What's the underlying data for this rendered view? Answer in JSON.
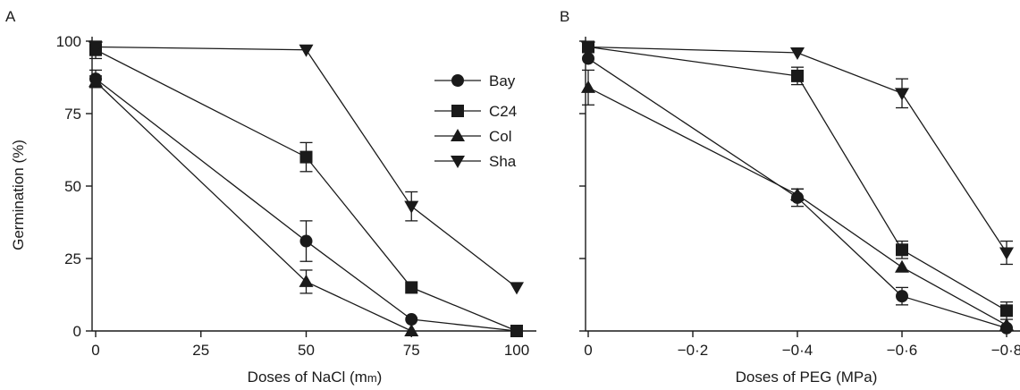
{
  "chart_data": [
    {
      "panel": "A",
      "type": "line",
      "xlabel": "Doses of NaCl (mm)",
      "xlabel_main": "Doses of NaCl (m",
      "xlabel_unit_sc": "m",
      "xlabel_close": ")",
      "ylabel": "Germination (%)",
      "x": [
        0,
        25,
        50,
        75,
        100
      ],
      "x_tick_labels": [
        "0",
        "25",
        "50",
        "75",
        "100"
      ],
      "y_tick_labels": [
        "0",
        "25",
        "50",
        "75",
        "100"
      ],
      "y_ticks": [
        0,
        25,
        50,
        75,
        100
      ],
      "xlim": [
        0,
        100
      ],
      "ylim": [
        0,
        100
      ],
      "legend": {
        "placement": "top-right",
        "entries": [
          "Bay",
          "C24",
          "Col",
          "Sha"
        ]
      },
      "series": [
        {
          "name": "Bay",
          "marker": "circle",
          "x": [
            0,
            50,
            75,
            100
          ],
          "values": [
            87,
            31,
            4,
            0
          ],
          "err": [
            3,
            7,
            0,
            0
          ]
        },
        {
          "name": "C24",
          "marker": "square",
          "x": [
            0,
            50,
            75,
            100
          ],
          "values": [
            97,
            60,
            15,
            0
          ],
          "err": [
            3,
            5,
            0,
            0
          ]
        },
        {
          "name": "Col",
          "marker": "triangle-up",
          "x": [
            0,
            50,
            75
          ],
          "values": [
            86,
            17,
            0
          ],
          "err": [
            2,
            4,
            0
          ]
        },
        {
          "name": "Sha",
          "marker": "triangle-down",
          "x": [
            0,
            50,
            75,
            100
          ],
          "values": [
            98,
            97,
            43,
            15
          ],
          "err": [
            0,
            0,
            5,
            0
          ]
        }
      ]
    },
    {
      "panel": "B",
      "type": "line",
      "xlabel": "Doses of PEG (MPa)",
      "ylabel": "",
      "x": [
        0,
        -0.2,
        -0.4,
        -0.6,
        -0.8
      ],
      "x_tick_labels": [
        "0",
        "−0·2",
        "−0·4",
        "−0·6",
        "−0·8"
      ],
      "y_tick_labels": [],
      "y_ticks": [
        0,
        25,
        50,
        75,
        100
      ],
      "xlim": [
        0,
        -0.8
      ],
      "ylim": [
        0,
        100
      ],
      "series": [
        {
          "name": "Bay",
          "marker": "circle",
          "x": [
            0,
            -0.4,
            -0.6,
            -0.8
          ],
          "values": [
            94,
            46,
            12,
            1
          ],
          "err": [
            0,
            3,
            3,
            0
          ]
        },
        {
          "name": "C24",
          "marker": "square",
          "x": [
            0,
            -0.4,
            -0.6,
            -0.8
          ],
          "values": [
            98,
            88,
            28,
            7
          ],
          "err": [
            0,
            3,
            3,
            3
          ]
        },
        {
          "name": "Col",
          "marker": "triangle-up",
          "x": [
            0,
            -0.4,
            -0.6,
            -0.8
          ],
          "values": [
            84,
            47,
            22,
            2
          ],
          "err": [
            6,
            2,
            0,
            0
          ]
        },
        {
          "name": "Sha",
          "marker": "triangle-down",
          "x": [
            0,
            -0.4,
            -0.6,
            -0.8
          ],
          "values": [
            98,
            96,
            82,
            27
          ],
          "err": [
            0,
            0,
            5,
            4
          ]
        }
      ]
    }
  ],
  "panels": {
    "a_letter": "A",
    "b_letter": "B"
  }
}
